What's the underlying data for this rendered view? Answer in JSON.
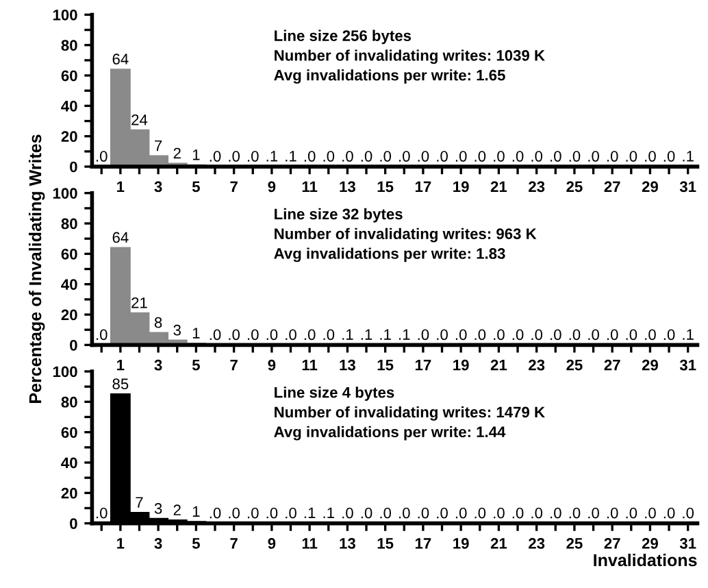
{
  "chart_data": [
    {
      "type": "bar",
      "categories": [
        null,
        "1",
        null,
        "3",
        null,
        "5",
        null,
        "7",
        null,
        "9",
        null,
        "11",
        null,
        "13",
        null,
        "15",
        null,
        "17",
        null,
        "19",
        null,
        "21",
        null,
        "23",
        null,
        "25",
        null,
        "27",
        null,
        "29",
        null,
        "31"
      ],
      "values": [
        0,
        64,
        24,
        7,
        2,
        1,
        0,
        0,
        0,
        0.1,
        0.1,
        0,
        0,
        0,
        0,
        0,
        0,
        0,
        0,
        0,
        0,
        0,
        0,
        0,
        0,
        0,
        0,
        0,
        0,
        0,
        0,
        0.1
      ],
      "value_labels": [
        ".0",
        "64",
        "24",
        "7",
        "2",
        "1",
        ".0",
        ".0",
        ".0",
        ".1",
        ".1",
        ".0",
        ".0",
        ".0",
        ".0",
        ".0",
        ".0",
        ".0",
        ".0",
        ".0",
        ".0",
        ".0",
        ".0",
        ".0",
        ".0",
        ".0",
        ".0",
        ".0",
        ".0",
        ".0",
        ".0",
        ".1"
      ],
      "color": "#8a8a8a",
      "ylim": [
        0,
        100
      ],
      "yticks": [
        0,
        {
          "value": 10,
          "label": null
        },
        20,
        {
          "value": 30,
          "label": null
        },
        40,
        {
          "value": 50,
          "label": null
        },
        60,
        {
          "value": 70,
          "label": null
        },
        80,
        {
          "value": 90,
          "label": null
        },
        100
      ],
      "annotations": [
        "Line size 256 bytes",
        "Number of invalidating writes: 1039 K",
        "Avg invalidations per write: 1.65"
      ]
    },
    {
      "type": "bar",
      "categories": [
        null,
        "1",
        null,
        "3",
        null,
        "5",
        null,
        "7",
        null,
        "9",
        null,
        "11",
        null,
        "13",
        null,
        "15",
        null,
        "17",
        null,
        "19",
        null,
        "21",
        null,
        "23",
        null,
        "25",
        null,
        "27",
        null,
        "29",
        null,
        "31"
      ],
      "values": [
        0,
        64,
        21,
        8,
        3,
        1,
        0,
        0,
        0,
        0,
        0,
        0,
        0,
        0.1,
        0.1,
        0.1,
        0.1,
        0,
        0,
        0,
        0,
        0,
        0,
        0,
        0,
        0,
        0,
        0,
        0,
        0,
        0,
        0.1
      ],
      "value_labels": [
        ".0",
        "64",
        "21",
        "8",
        "3",
        "1",
        ".0",
        ".0",
        ".0",
        ".0",
        ".0",
        ".0",
        ".0",
        ".1",
        ".1",
        ".1",
        ".1",
        ".0",
        ".0",
        ".0",
        ".0",
        ".0",
        ".0",
        ".0",
        ".0",
        ".0",
        ".0",
        ".0",
        ".0",
        ".0",
        ".0",
        ".1"
      ],
      "color": "#8a8a8a",
      "ylabel": "Percentage of Invalidating Writes",
      "ylim": [
        0,
        100
      ],
      "yticks": [
        0,
        {
          "value": 10,
          "label": null
        },
        20,
        {
          "value": 30,
          "label": null
        },
        40,
        {
          "value": 50,
          "label": null
        },
        60,
        {
          "value": 70,
          "label": null
        },
        80,
        {
          "value": 90,
          "label": null
        },
        100
      ],
      "annotations": [
        "Line size 32 bytes",
        "Number of invalidating writes: 963 K",
        "Avg invalidations per write: 1.83"
      ]
    },
    {
      "type": "bar",
      "categories": [
        null,
        "1",
        null,
        "3",
        null,
        "5",
        null,
        "7",
        null,
        "9",
        null,
        "11",
        null,
        "13",
        null,
        "15",
        null,
        "17",
        null,
        "19",
        null,
        "21",
        null,
        "23",
        null,
        "25",
        null,
        "27",
        null,
        "29",
        null,
        "31"
      ],
      "values": [
        0,
        85,
        7,
        3,
        2,
        1,
        0,
        0,
        0,
        0,
        0,
        0.1,
        0.1,
        0,
        0,
        0,
        0,
        0,
        0,
        0,
        0,
        0,
        0,
        0,
        0,
        0,
        0,
        0,
        0,
        0,
        0,
        0
      ],
      "value_labels": [
        ".0",
        "85",
        "7",
        "3",
        "2",
        "1",
        ".0",
        ".0",
        ".0",
        ".0",
        ".0",
        ".1",
        ".1",
        ".0",
        ".0",
        ".0",
        ".0",
        ".0",
        ".0",
        ".0",
        ".0",
        ".0",
        ".0",
        ".0",
        ".0",
        ".0",
        ".0",
        ".0",
        ".0",
        ".0",
        ".0",
        ".0"
      ],
      "color": "#000000",
      "xlabel": "Invalidations",
      "ylim": [
        0,
        100
      ],
      "yticks": [
        0,
        {
          "value": 10,
          "label": null
        },
        20,
        {
          "value": 30,
          "label": null
        },
        40,
        {
          "value": 50,
          "label": null
        },
        60,
        {
          "value": 70,
          "label": null
        },
        80,
        {
          "value": 90,
          "label": null
        },
        100
      ],
      "annotations": [
        "Line size 4 bytes",
        "Number of invalidating writes: 1479 K",
        "Avg invalidations per write: 1.44"
      ]
    }
  ]
}
